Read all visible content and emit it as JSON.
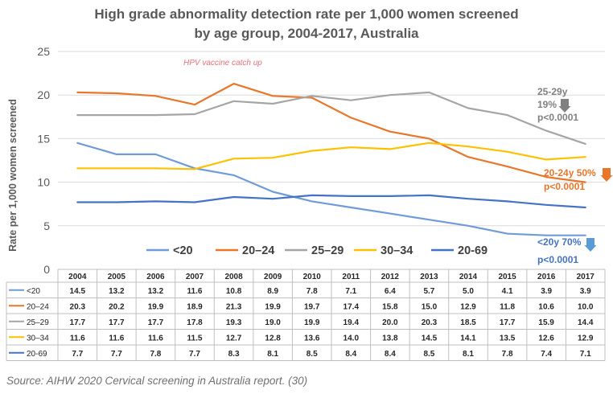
{
  "chart_data": {
    "type": "line",
    "title": [
      "High grade abnormality detection rate per 1,000 women screened",
      "by age group, 2004-2017, Australia"
    ],
    "ylabel": "Rate per 1,000 women screened",
    "ylim": [
      0,
      25
    ],
    "yticks": [
      "0",
      "5",
      "10",
      "15",
      "20",
      "25"
    ],
    "grid": true,
    "categories": [
      "2004",
      "2005",
      "2006",
      "2007",
      "2008",
      "2009",
      "2010",
      "2011",
      "2012",
      "2013",
      "2014",
      "2015",
      "2016",
      "2017"
    ],
    "legend_position": "bottom",
    "series": [
      {
        "name": "<20",
        "color": "#6f9bd8",
        "values": [
          14.5,
          13.2,
          13.2,
          11.6,
          10.8,
          8.9,
          7.8,
          7.1,
          6.4,
          5.7,
          5.0,
          4.1,
          3.9,
          3.9
        ]
      },
      {
        "name": "20–24",
        "color": "#e8762b",
        "values": [
          20.3,
          20.2,
          19.9,
          18.9,
          21.3,
          19.9,
          19.7,
          17.4,
          15.8,
          15.0,
          12.9,
          11.8,
          10.6,
          10.0
        ]
      },
      {
        "name": "25–29",
        "color": "#a5a5a5",
        "values": [
          17.7,
          17.7,
          17.7,
          17.8,
          19.3,
          19.0,
          19.9,
          19.4,
          20.0,
          20.3,
          18.5,
          17.7,
          15.9,
          14.4
        ]
      },
      {
        "name": "30–34",
        "color": "#ffc000",
        "values": [
          11.6,
          11.6,
          11.6,
          11.5,
          12.7,
          12.8,
          13.6,
          14.0,
          13.8,
          14.5,
          14.1,
          13.5,
          12.6,
          12.9
        ]
      },
      {
        "name": "20-69",
        "color": "#4472c4",
        "values": [
          7.7,
          7.7,
          7.8,
          7.7,
          8.3,
          8.1,
          8.5,
          8.4,
          8.4,
          8.5,
          8.1,
          7.8,
          7.4,
          7.1
        ]
      }
    ],
    "table_rows": [
      {
        "label": "<20",
        "values": [
          "14.5",
          "13.2",
          "13.2",
          "11.6",
          "10.8",
          "8.9",
          "7.8",
          "7.1",
          "6.4",
          "5.7",
          "5.0",
          "4.1",
          "3.9",
          "3.9"
        ]
      },
      {
        "label": "20–24",
        "values": [
          "20.3",
          "20.2",
          "19.9",
          "18.9",
          "21.3",
          "19.9",
          "19.7",
          "17.4",
          "15.8",
          "15.0",
          "12.9",
          "11.8",
          "10.6",
          "10.0"
        ]
      },
      {
        "label": "25–29",
        "values": [
          "17.7",
          "17.7",
          "17.7",
          "17.8",
          "19.3",
          "19.0",
          "19.9",
          "19.4",
          "20.0",
          "20.3",
          "18.5",
          "17.7",
          "15.9",
          "14.4"
        ]
      },
      {
        "label": "30–34",
        "values": [
          "11.6",
          "11.6",
          "11.6",
          "11.5",
          "12.7",
          "12.8",
          "13.6",
          "14.0",
          "13.8",
          "14.5",
          "14.1",
          "13.5",
          "12.6",
          "12.9"
        ]
      },
      {
        "label": "20-69",
        "values": [
          "7.7",
          "7.7",
          "7.8",
          "7.7",
          "8.3",
          "8.1",
          "8.5",
          "8.4",
          "8.4",
          "8.5",
          "8.1",
          "7.8",
          "7.4",
          "7.1"
        ]
      }
    ],
    "annotations": {
      "hpv": "HPV vaccine catch up",
      "a25_29": {
        "lines": [
          "25-29y",
          "19%",
          "p<0.0001"
        ],
        "color": "#808080"
      },
      "a20_24": {
        "lines": [
          "20-24y 50%",
          "p<0.0001"
        ],
        "color": "#e8762b"
      },
      "a_lt20": {
        "lines": [
          "<20y 70%",
          "p<0.0001"
        ],
        "color": "#4472c4"
      }
    }
  },
  "source": "Source: AIHW 2020 Cervical screening in Australia report. (30)"
}
